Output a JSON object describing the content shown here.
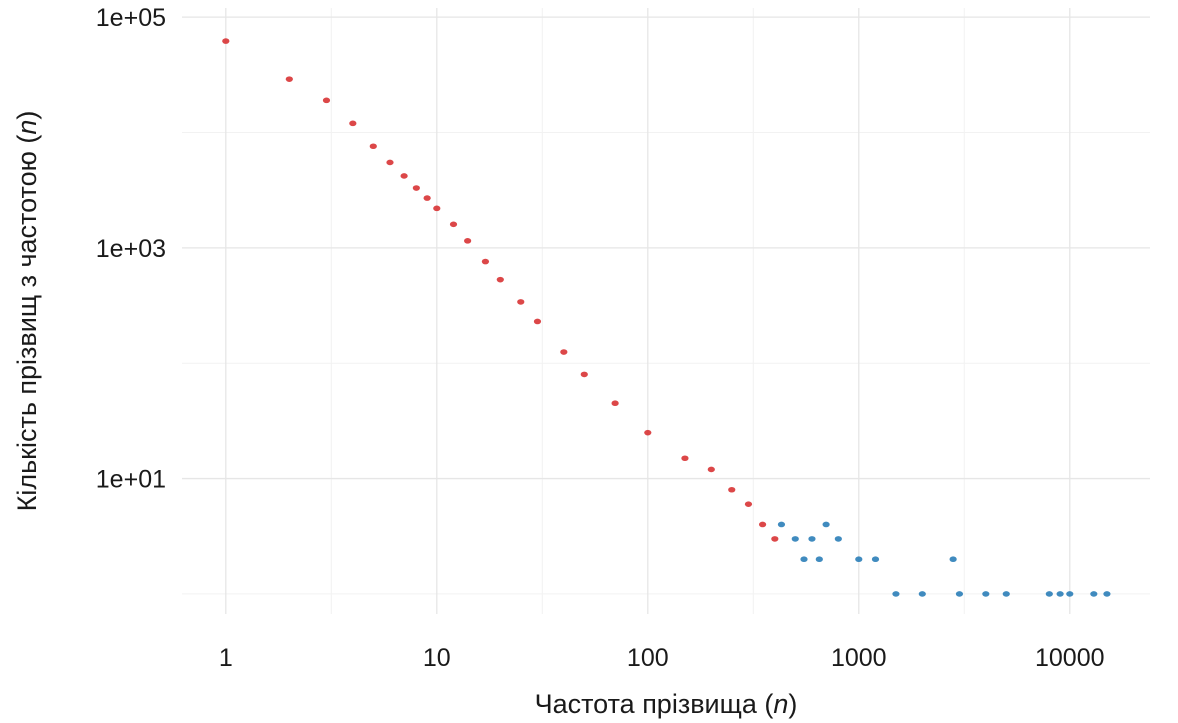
{
  "chart_data": {
    "type": "scatter",
    "title": "",
    "xlabel_prefix": "Частота прізвища (",
    "xlabel_var": "n",
    "xlabel_suffix": ")",
    "ylabel_prefix": "Кількість прізвищ з частотою (",
    "ylabel_var": "n",
    "ylabel_suffix": ")",
    "x_scale": "log10",
    "y_scale": "log10",
    "xlim": [
      0.62,
      24000
    ],
    "ylim": [
      0.67,
      120000
    ],
    "x_ticks": [
      1,
      10,
      100,
      1000,
      10000
    ],
    "x_tick_labels": [
      "1",
      "10",
      "100",
      "1000",
      "10000"
    ],
    "y_ticks": [
      10,
      1000,
      100000
    ],
    "y_tick_labels": [
      "1e+01",
      "1e+03",
      "1e+05"
    ],
    "grid": true,
    "legend": "none",
    "colors": {
      "below_threshold": "#d62728",
      "above_threshold": "#1f77b4"
    },
    "color_threshold_x": 430,
    "series": [
      {
        "x": [
          1,
          2,
          3,
          4,
          5,
          6,
          7,
          8,
          9,
          10,
          12,
          14,
          17,
          20,
          25,
          30,
          40,
          50,
          70,
          100,
          150,
          200,
          250,
          300,
          350,
          400,
          430,
          500,
          550,
          600,
          650,
          700,
          800,
          1000,
          1200,
          1500,
          2000,
          2800,
          3000,
          4000,
          5000,
          8000,
          9000,
          10000,
          13000,
          15000
        ],
        "y": [
          62000,
          29000,
          19000,
          12000,
          7600,
          5500,
          4200,
          3300,
          2700,
          2200,
          1600,
          1150,
          760,
          530,
          340,
          230,
          125,
          80,
          45,
          25,
          15,
          12,
          8,
          6,
          4,
          3,
          4,
          3,
          2,
          3,
          2,
          4,
          3,
          2,
          2,
          1,
          1,
          2,
          1,
          1,
          1,
          1,
          1,
          1,
          1,
          1
        ]
      }
    ]
  }
}
